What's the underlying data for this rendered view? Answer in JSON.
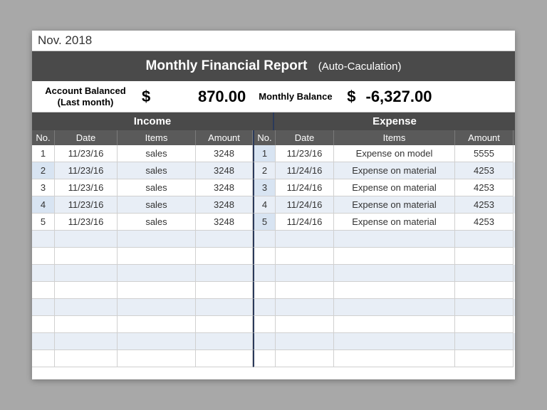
{
  "period": "Nov. 2018",
  "title": "Monthly Financial Report",
  "subtitle": "(Auto-Caculation)",
  "balance": {
    "label1_line1": "Account Balanced",
    "label1_line2": "(Last month)",
    "currency": "$",
    "value1": "870.00",
    "label2": "Monthly Balance",
    "value2": "-6,327.00"
  },
  "sections": {
    "income": "Income",
    "expense": "Expense"
  },
  "columns": {
    "no": "No.",
    "date": "Date",
    "items": "Items",
    "amount": "Amount"
  },
  "income_rows": [
    {
      "no": "1",
      "date": "11/23/16",
      "item": "sales",
      "amount": "3248"
    },
    {
      "no": "2",
      "date": "11/23/16",
      "item": "sales",
      "amount": "3248"
    },
    {
      "no": "3",
      "date": "11/23/16",
      "item": "sales",
      "amount": "3248"
    },
    {
      "no": "4",
      "date": "11/23/16",
      "item": "sales",
      "amount": "3248"
    },
    {
      "no": "5",
      "date": "11/23/16",
      "item": "sales",
      "amount": "3248"
    }
  ],
  "expense_rows": [
    {
      "no": "1",
      "date": "11/23/16",
      "item": "Expense on model",
      "amount": "5555"
    },
    {
      "no": "2",
      "date": "11/24/16",
      "item": "Expense on material",
      "amount": "4253"
    },
    {
      "no": "3",
      "date": "11/24/16",
      "item": "Expense on material",
      "amount": "4253"
    },
    {
      "no": "4",
      "date": "11/24/16",
      "item": "Expense on material",
      "amount": "4253"
    },
    {
      "no": "5",
      "date": "11/24/16",
      "item": "Expense on material",
      "amount": "4253"
    }
  ],
  "empty_rows": 8,
  "colors": {
    "header_bg": "#4a4a4a",
    "subheader_bg": "#5a5a5a",
    "alt_row": "#e8eef6",
    "selected": "#d8e4f2",
    "divider": "#2b3a5a",
    "page_bg": "#a8a8a8"
  }
}
